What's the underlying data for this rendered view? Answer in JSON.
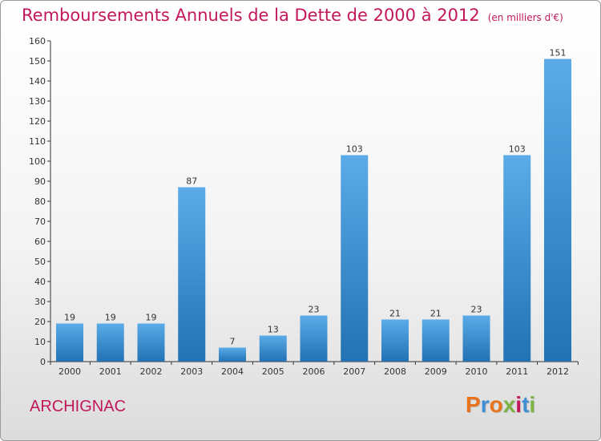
{
  "header": {
    "title": "Remboursements Annuels de la Dette de 2000 à 2012",
    "subtitle": "(en milliers d'€)"
  },
  "footer": {
    "commune": "ARCHIGNAC",
    "logo_text": "Proxiti",
    "logo_colors": [
      "#e8731c",
      "#3f8fd2",
      "#e8731c",
      "#7cb342",
      "#c2185b",
      "#3f8fd2",
      "#7cb342"
    ]
  },
  "chart_data": {
    "type": "bar",
    "title": "Remboursements Annuels de la Dette de 2000 à 2012",
    "subtitle": "(en milliers d'€)",
    "xlabel": "",
    "ylabel": "",
    "categories": [
      "2000",
      "2001",
      "2002",
      "2003",
      "2004",
      "2005",
      "2006",
      "2007",
      "2008",
      "2009",
      "2010",
      "2011",
      "2012"
    ],
    "values": [
      19,
      19,
      19,
      87,
      7,
      13,
      23,
      103,
      21,
      21,
      23,
      103,
      151
    ],
    "ylim": [
      0,
      160
    ],
    "yticks": [
      0,
      10,
      20,
      30,
      40,
      50,
      60,
      70,
      80,
      90,
      100,
      110,
      120,
      130,
      140,
      150,
      160
    ],
    "grid": false,
    "data_labels": true,
    "colors": {
      "bar_light": "#5aabe8",
      "bar_dark": "#2272b4",
      "title": "#c2185b",
      "axis": "#333333"
    }
  }
}
